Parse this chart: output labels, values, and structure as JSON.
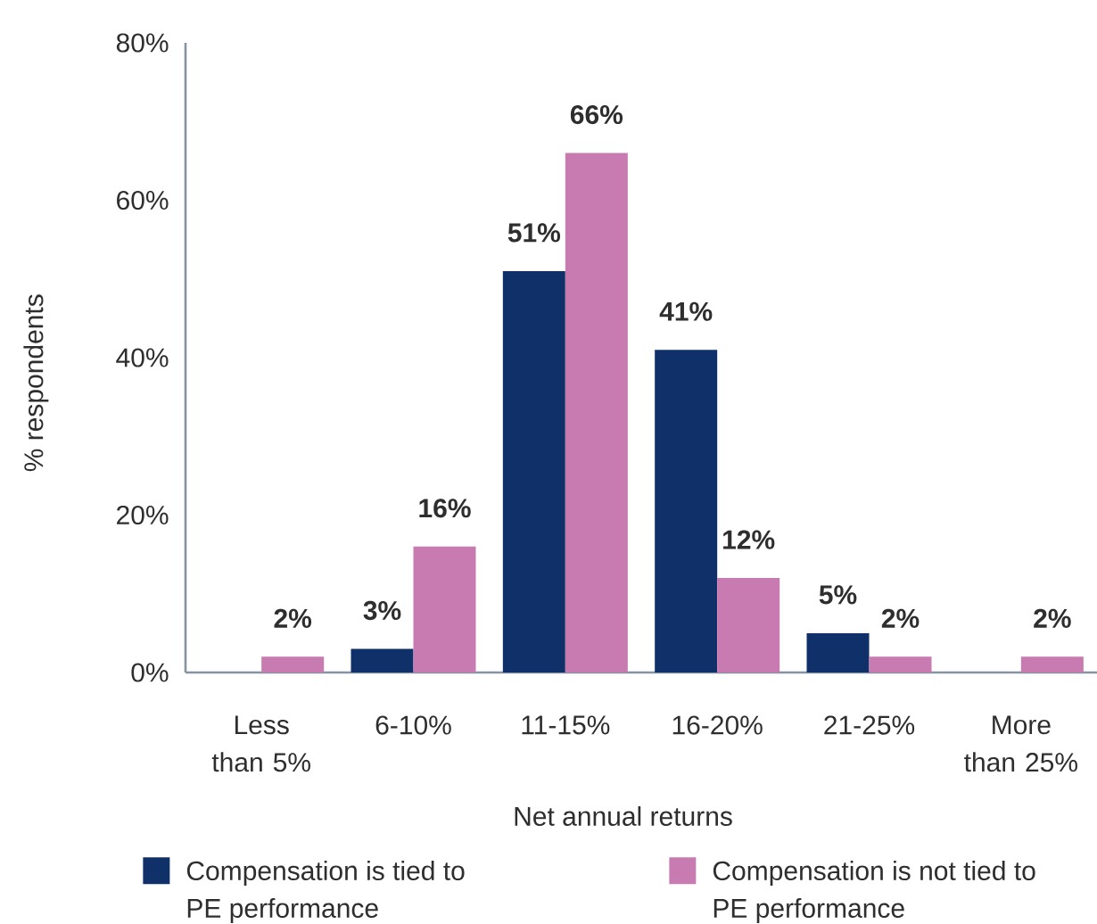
{
  "chart_data": {
    "type": "bar",
    "xlabel": "Net annual returns",
    "ylabel": "% respondents",
    "categories": [
      "Less than 5%",
      "6-10%",
      "11-15%",
      "16-20%",
      "21-25%",
      "More than 25%"
    ],
    "series": [
      {
        "name": "Compensation is tied to PE performance",
        "color": "#10306a",
        "values": [
          null,
          3,
          51,
          41,
          5,
          null
        ],
        "value_labels": [
          null,
          "3%",
          "51%",
          "41%",
          "5%",
          null
        ]
      },
      {
        "name": "Compensation is not tied to PE performance",
        "color": "#c77bb1",
        "values": [
          2,
          16,
          66,
          12,
          2,
          2
        ],
        "value_labels": [
          "2%",
          "16%",
          "66%",
          "12%",
          "2%",
          "2%"
        ]
      }
    ],
    "ylim": [
      0,
      80
    ],
    "yticks": [
      {
        "value": 0,
        "label": "0%"
      },
      {
        "value": 20,
        "label": "20%"
      },
      {
        "value": 40,
        "label": "40%"
      },
      {
        "value": 60,
        "label": "60%"
      },
      {
        "value": 80,
        "label": "80%"
      }
    ],
    "legend": "bottom"
  }
}
